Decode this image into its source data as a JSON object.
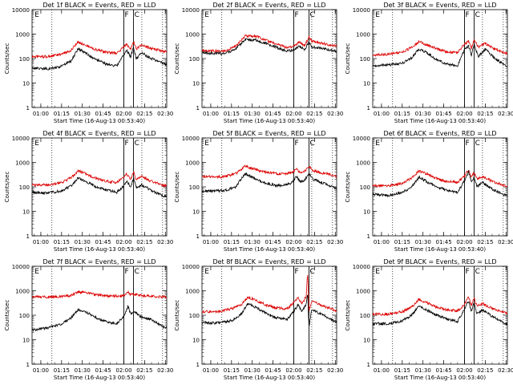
{
  "shared": {
    "ylabel": "Counts/sec",
    "xlabel": "Start Time (16-Aug-13 00:53:40)",
    "x_ticks": [
      "01:00",
      "01:15",
      "01:30",
      "01:45",
      "02:00",
      "02:15",
      "02:30"
    ],
    "y_ticks": [
      "1",
      "10",
      "100",
      "1000",
      "10000"
    ],
    "colors": {
      "events": "#000000",
      "lld": "#dd0000"
    }
  },
  "chart_data": [
    {
      "type": "line",
      "title": "Det 1f BLACK = Events, RED = LLD",
      "yscale": "log",
      "ylim": [
        1,
        10000
      ],
      "x_range": [
        "00:53:40",
        "02:31:00"
      ],
      "markers": {
        "E": "00:55",
        "F": "02:00",
        "C": "02:07"
      },
      "dotted_x": [
        "01:08",
        "02:13",
        "02:28"
      ],
      "solid_x": [
        "02:00",
        "02:07"
      ],
      "series": [
        {
          "name": "Events",
          "color": "#000000",
          "x": [
            "00:54",
            "01:05",
            "01:15",
            "01:22",
            "01:27",
            "01:33",
            "01:40",
            "01:47",
            "01:55",
            "02:00",
            "02:02",
            "02:05",
            "02:07",
            "02:09",
            "02:13",
            "02:20",
            "02:30"
          ],
          "values": [
            40,
            38,
            48,
            80,
            250,
            160,
            90,
            60,
            50,
            140,
            220,
            120,
            280,
            100,
            170,
            100,
            60
          ]
        },
        {
          "name": "LLD",
          "color": "#dd0000",
          "x": [
            "00:54",
            "01:05",
            "01:15",
            "01:22",
            "01:27",
            "01:33",
            "01:40",
            "01:47",
            "01:55",
            "02:00",
            "02:02",
            "02:05",
            "02:07",
            "02:09",
            "02:13",
            "02:20",
            "02:30"
          ],
          "values": [
            120,
            120,
            150,
            220,
            480,
            340,
            230,
            180,
            165,
            300,
            380,
            260,
            480,
            250,
            350,
            260,
            190
          ]
        }
      ]
    },
    {
      "type": "line",
      "title": "Det 2f BLACK = Events, RED = LLD",
      "yscale": "log",
      "ylim": [
        1,
        10000
      ],
      "x_range": [
        "00:53:40",
        "02:31:00"
      ],
      "markers": {
        "E": "00:55",
        "F": "02:00",
        "C": "02:11"
      },
      "dotted_x": [
        "01:08",
        "02:13",
        "02:28"
      ],
      "solid_x": [
        "02:00",
        "02:11"
      ],
      "series": [
        {
          "name": "Events",
          "color": "#000000",
          "x": [
            "00:54",
            "01:10",
            "01:18",
            "01:25",
            "01:33",
            "01:42",
            "01:55",
            "02:00",
            "02:04",
            "02:08",
            "02:11",
            "02:13",
            "02:20",
            "02:30"
          ],
          "values": [
            170,
            160,
            240,
            600,
            560,
            380,
            200,
            230,
            320,
            230,
            500,
            300,
            260,
            200
          ]
        },
        {
          "name": "LLD",
          "color": "#dd0000",
          "x": [
            "00:54",
            "01:10",
            "01:18",
            "01:25",
            "01:33",
            "01:42",
            "01:55",
            "02:00",
            "02:04",
            "02:08",
            "02:11",
            "02:13",
            "02:20",
            "02:30"
          ],
          "values": [
            210,
            200,
            310,
            850,
            800,
            500,
            280,
            330,
            460,
            340,
            800,
            520,
            420,
            330
          ]
        }
      ]
    },
    {
      "type": "line",
      "title": "Det 3f BLACK = Events, RED = LLD",
      "yscale": "log",
      "ylim": [
        1,
        10000
      ],
      "x_range": [
        "00:53:40",
        "02:31:00"
      ],
      "markers": {
        "E": "00:55",
        "F": "02:00",
        "C": "02:07"
      },
      "dotted_x": [
        "01:08",
        "02:13",
        "02:28"
      ],
      "solid_x": [
        "02:00",
        "02:07"
      ],
      "series": [
        {
          "name": "Events",
          "color": "#000000",
          "x": [
            "00:54",
            "01:05",
            "01:15",
            "01:22",
            "01:27",
            "01:33",
            "01:40",
            "01:47",
            "01:55",
            "02:00",
            "02:03",
            "02:05",
            "02:07",
            "02:10",
            "02:15",
            "02:22",
            "02:30"
          ],
          "values": [
            50,
            55,
            65,
            110,
            250,
            170,
            90,
            60,
            50,
            230,
            320,
            140,
            380,
            120,
            250,
            100,
            50
          ]
        },
        {
          "name": "LLD",
          "color": "#dd0000",
          "x": [
            "00:54",
            "01:05",
            "01:15",
            "01:22",
            "01:27",
            "01:33",
            "01:40",
            "01:47",
            "01:55",
            "02:00",
            "02:03",
            "02:05",
            "02:07",
            "02:10",
            "02:15",
            "02:22",
            "02:30"
          ],
          "values": [
            140,
            150,
            190,
            280,
            500,
            360,
            250,
            190,
            170,
            400,
            500,
            260,
            560,
            300,
            420,
            240,
            160
          ]
        }
      ]
    },
    {
      "type": "line",
      "title": "Det 4f BLACK = Events, RED = LLD",
      "yscale": "log",
      "ylim": [
        1,
        10000
      ],
      "x_range": [
        "00:53:40",
        "02:31:00"
      ],
      "markers": {
        "E": "00:55",
        "F": "02:00",
        "C": "02:07"
      },
      "dotted_x": [
        "01:08",
        "02:13",
        "02:28"
      ],
      "solid_x": [
        "02:00",
        "02:07"
      ],
      "series": [
        {
          "name": "Events",
          "color": "#000000",
          "x": [
            "00:54",
            "01:05",
            "01:15",
            "01:22",
            "01:27",
            "01:33",
            "01:40",
            "01:47",
            "01:55",
            "02:00",
            "02:02",
            "02:05",
            "02:07",
            "02:09",
            "02:13",
            "02:20",
            "02:30"
          ],
          "values": [
            60,
            55,
            70,
            110,
            230,
            160,
            100,
            75,
            60,
            110,
            180,
            100,
            230,
            90,
            120,
            70,
            40
          ]
        },
        {
          "name": "LLD",
          "color": "#dd0000",
          "x": [
            "00:54",
            "01:05",
            "01:15",
            "01:22",
            "01:27",
            "01:33",
            "01:40",
            "01:47",
            "01:55",
            "02:00",
            "02:02",
            "02:05",
            "02:07",
            "02:09",
            "02:13",
            "02:20",
            "02:30"
          ],
          "values": [
            120,
            120,
            150,
            240,
            460,
            340,
            220,
            170,
            150,
            240,
            340,
            210,
            420,
            200,
            260,
            170,
            110
          ]
        }
      ]
    },
    {
      "type": "line",
      "title": "Det 5f BLACK = Events, RED = LLD",
      "yscale": "log",
      "ylim": [
        1,
        10000
      ],
      "x_range": [
        "00:53:40",
        "02:31:00"
      ],
      "markers": {
        "E": "00:55",
        "F": "02:00",
        "C": "02:11"
      },
      "dotted_x": [
        "01:08",
        "02:13",
        "02:28"
      ],
      "solid_x": [
        "02:00",
        "02:11"
      ],
      "series": [
        {
          "name": "Events",
          "color": "#000000",
          "x": [
            "00:54",
            "01:10",
            "01:18",
            "01:25",
            "01:30",
            "01:38",
            "01:48",
            "01:58",
            "02:02",
            "02:05",
            "02:08",
            "02:11",
            "02:14",
            "02:20",
            "02:30"
          ],
          "values": [
            65,
            70,
            100,
            350,
            250,
            150,
            110,
            140,
            260,
            160,
            200,
            350,
            200,
            150,
            90
          ]
        },
        {
          "name": "LLD",
          "color": "#dd0000",
          "x": [
            "00:54",
            "01:10",
            "01:18",
            "01:25",
            "01:30",
            "01:38",
            "01:48",
            "01:58",
            "02:02",
            "02:05",
            "02:08",
            "02:11",
            "02:14",
            "02:20",
            "02:30"
          ],
          "values": [
            260,
            260,
            350,
            700,
            560,
            420,
            340,
            370,
            550,
            380,
            440,
            700,
            460,
            380,
            280
          ]
        }
      ]
    },
    {
      "type": "line",
      "title": "Det 6f BLACK = Events, RED = LLD",
      "yscale": "log",
      "ylim": [
        1,
        10000
      ],
      "x_range": [
        "00:53:40",
        "02:31:00"
      ],
      "markers": {
        "E": "00:55",
        "F": "02:00",
        "C": "02:07"
      },
      "dotted_x": [
        "01:08",
        "02:13",
        "02:28"
      ],
      "solid_x": [
        "02:00",
        "02:07"
      ],
      "series": [
        {
          "name": "Events",
          "color": "#000000",
          "x": [
            "00:54",
            "01:05",
            "01:15",
            "01:22",
            "01:27",
            "01:33",
            "01:40",
            "01:47",
            "01:55",
            "02:00",
            "02:03",
            "02:05",
            "02:07",
            "02:09",
            "02:13",
            "02:20",
            "02:30"
          ],
          "values": [
            50,
            45,
            60,
            100,
            250,
            160,
            100,
            75,
            60,
            180,
            420,
            160,
            260,
            100,
            150,
            80,
            45
          ]
        },
        {
          "name": "LLD",
          "color": "#dd0000",
          "x": [
            "00:54",
            "01:05",
            "01:15",
            "01:22",
            "01:27",
            "01:33",
            "01:40",
            "01:47",
            "01:55",
            "02:00",
            "02:03",
            "02:05",
            "02:07",
            "02:09",
            "02:13",
            "02:20",
            "02:30"
          ],
          "values": [
            110,
            110,
            140,
            230,
            450,
            330,
            220,
            170,
            150,
            280,
            520,
            260,
            380,
            220,
            260,
            170,
            110
          ]
        }
      ]
    },
    {
      "type": "line",
      "title": "Det 7f BLACK = Events, RED = LLD",
      "yscale": "log",
      "ylim": [
        1,
        10000
      ],
      "x_range": [
        "00:53:40",
        "02:31:00"
      ],
      "markers": {
        "E": "00:55",
        "F": "02:00",
        "C": "02:07"
      },
      "dotted_x": [
        "01:08",
        "02:13",
        "02:28"
      ],
      "solid_x": [
        "02:00",
        "02:07"
      ],
      "series": [
        {
          "name": "Events",
          "color": "#000000",
          "x": [
            "00:54",
            "01:05",
            "01:15",
            "01:22",
            "01:27",
            "01:33",
            "01:40",
            "01:47",
            "01:55",
            "02:00",
            "02:03",
            "02:05",
            "02:08",
            "02:12",
            "02:20",
            "02:30"
          ],
          "values": [
            25,
            30,
            45,
            80,
            170,
            130,
            80,
            55,
            45,
            90,
            240,
            110,
            140,
            90,
            65,
            30
          ]
        },
        {
          "name": "LLD",
          "color": "#dd0000",
          "x": [
            "00:54",
            "01:05",
            "01:15",
            "01:22",
            "01:27",
            "01:33",
            "01:40",
            "01:47",
            "01:55",
            "02:00",
            "02:03",
            "02:05",
            "02:08",
            "02:12",
            "02:20",
            "02:30"
          ],
          "values": [
            560,
            560,
            580,
            640,
            900,
            800,
            680,
            620,
            600,
            650,
            900,
            680,
            720,
            640,
            600,
            560
          ]
        }
      ]
    },
    {
      "type": "line",
      "title": "Det 8f BLACK = Events, RED = LLD",
      "yscale": "log",
      "ylim": [
        1,
        10000
      ],
      "x_range": [
        "00:53:40",
        "02:31:00"
      ],
      "markers": {
        "E": "00:55",
        "F": "02:00",
        "C": "02:11"
      },
      "dotted_x": [
        "01:08",
        "02:13",
        "02:28"
      ],
      "solid_x": [
        "02:00",
        "02:11"
      ],
      "series": [
        {
          "name": "Events",
          "color": "#000000",
          "x": [
            "00:54",
            "01:05",
            "01:15",
            "01:22",
            "01:27",
            "01:33",
            "01:40",
            "01:47",
            "01:55",
            "02:00",
            "02:03",
            "02:06",
            "02:09",
            "02:10",
            "02:11",
            "02:13",
            "02:20",
            "02:30"
          ],
          "values": [
            50,
            48,
            60,
            110,
            300,
            200,
            120,
            80,
            65,
            140,
            260,
            140,
            300,
            700,
            30,
            170,
            110,
            55
          ]
        },
        {
          "name": "LLD",
          "color": "#dd0000",
          "x": [
            "00:54",
            "01:05",
            "01:15",
            "01:22",
            "01:27",
            "01:33",
            "01:40",
            "01:47",
            "01:55",
            "02:00",
            "02:03",
            "02:06",
            "02:09",
            "02:10",
            "02:11",
            "02:13",
            "02:20",
            "02:30"
          ],
          "values": [
            140,
            140,
            180,
            270,
            550,
            400,
            260,
            200,
            180,
            320,
            520,
            300,
            600,
            6000,
            150,
            380,
            250,
            160
          ]
        }
      ]
    },
    {
      "type": "line",
      "title": "Det 9f BLACK = Events, RED = LLD",
      "yscale": "log",
      "ylim": [
        1,
        10000
      ],
      "x_range": [
        "00:53:40",
        "02:31:00"
      ],
      "markers": {
        "E": "00:55",
        "F": "02:00",
        "C": "02:07"
      },
      "dotted_x": [
        "01:08",
        "02:13",
        "02:28"
      ],
      "solid_x": [
        "02:00",
        "02:07"
      ],
      "series": [
        {
          "name": "Events",
          "color": "#000000",
          "x": [
            "00:54",
            "01:05",
            "01:15",
            "01:22",
            "01:27",
            "01:33",
            "01:40",
            "01:47",
            "01:55",
            "02:00",
            "02:03",
            "02:05",
            "02:07",
            "02:09",
            "02:13",
            "02:20",
            "02:30"
          ],
          "values": [
            45,
            45,
            60,
            100,
            240,
            160,
            100,
            70,
            55,
            170,
            380,
            150,
            320,
            110,
            170,
            90,
            45
          ]
        },
        {
          "name": "LLD",
          "color": "#dd0000",
          "x": [
            "00:54",
            "01:05",
            "01:15",
            "01:22",
            "01:27",
            "01:33",
            "01:40",
            "01:47",
            "01:55",
            "02:00",
            "02:03",
            "02:05",
            "02:07",
            "02:09",
            "02:13",
            "02:20",
            "02:30"
          ],
          "values": [
            110,
            110,
            140,
            220,
            440,
            320,
            210,
            165,
            150,
            280,
            560,
            260,
            480,
            230,
            300,
            190,
            120
          ]
        }
      ]
    }
  ]
}
